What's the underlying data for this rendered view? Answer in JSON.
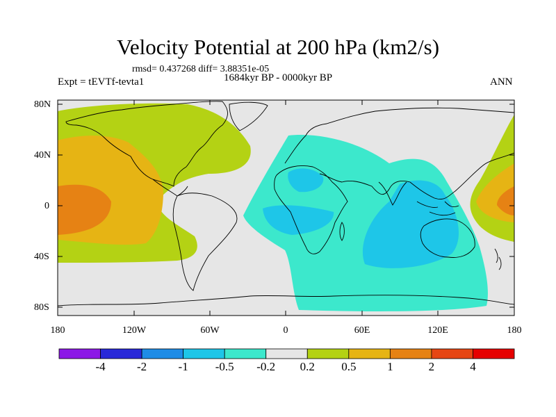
{
  "title": "Velocity Potential at 200 hPa (km2/s)",
  "stats": "rmsd= 0.437268 diff= 3.88351e-05",
  "left_label": "Expt = tEVTf-tevta1",
  "center_label": "1684kyr BP - 0000kyr BP",
  "right_label": "ANN",
  "lat_ticks": [
    "80N",
    "40N",
    "0",
    "40S",
    "80S"
  ],
  "lon_ticks": [
    "180",
    "120W",
    "60W",
    "0",
    "60E",
    "120E",
    "180"
  ],
  "colorbar": {
    "labels": [
      "-4",
      "-2",
      "-1",
      "-0.5",
      "-0.2",
      "0.2",
      "0.5",
      "1",
      "2",
      "4"
    ],
    "colors": [
      "#8c18e6",
      "#2828d8",
      "#1e8ce6",
      "#1ec6e8",
      "#3ce8cc",
      "#e6e6e6",
      "#b4d214",
      "#e6b414",
      "#e68214",
      "#e64614",
      "#e60000"
    ]
  }
}
